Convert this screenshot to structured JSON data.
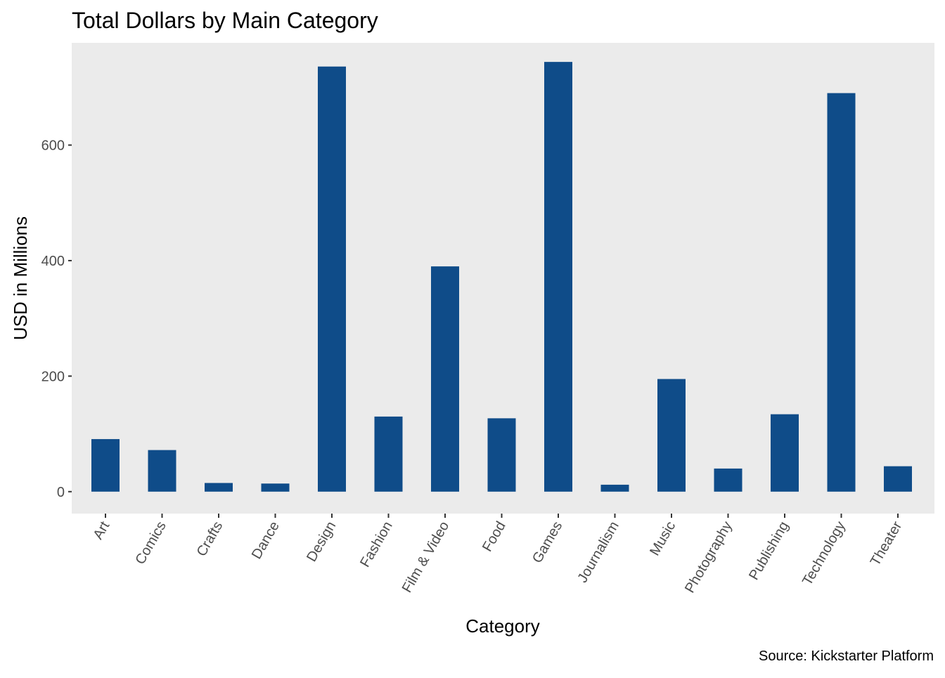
{
  "chart_data": {
    "type": "bar",
    "title": "Total Dollars by Main Category",
    "xlabel": "Category",
    "ylabel": "USD in Millions",
    "caption": "Source: Kickstarter Platform",
    "categories": [
      "Art",
      "Comics",
      "Crafts",
      "Dance",
      "Design",
      "Fashion",
      "Film & Video",
      "Food",
      "Games",
      "Journalism",
      "Music",
      "Photography",
      "Publishing",
      "Technology",
      "Theater"
    ],
    "values": [
      91,
      72,
      15,
      14,
      736,
      130,
      390,
      127,
      744,
      12,
      195,
      40,
      134,
      690,
      44
    ],
    "y_ticks": [
      0,
      200,
      400,
      600
    ],
    "y_tick_labels": [
      "0",
      "200",
      "400",
      "600"
    ],
    "ylim": [
      -38,
      777
    ],
    "grid": false,
    "legend": "none",
    "colors": {
      "bar": "#0f4c89",
      "panel": "#ebebeb",
      "tick_text": "#4d4d4d",
      "tick_mark": "#333333"
    }
  }
}
